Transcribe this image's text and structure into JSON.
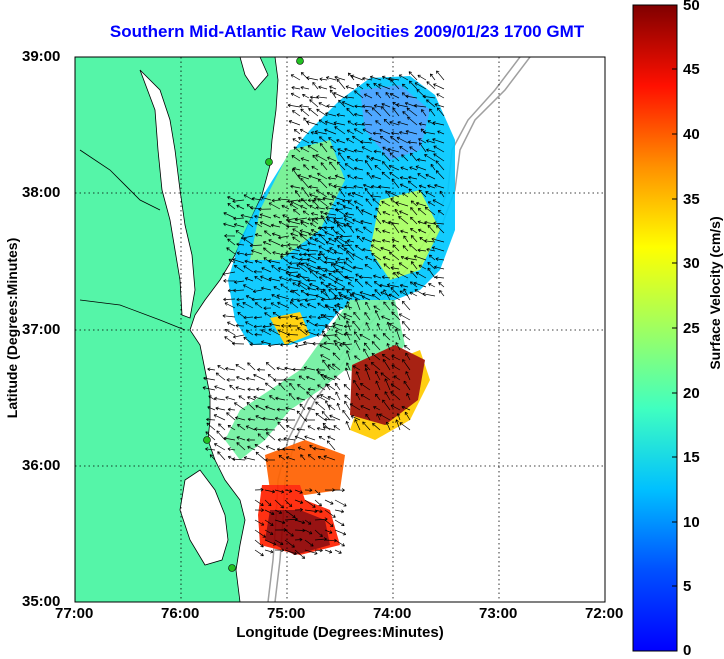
{
  "title": "Southern Mid-Atlantic Raw Velocities 2009/01/23 1700 GMT",
  "xlabel": "Longitude (Degrees:Minutes)",
  "ylabel": "Latitude (Degrees:Minutes)",
  "colorbar_label": "Surface Velocity (cm/s)",
  "x_ticks": [
    "77:00",
    "76:00",
    "75:00",
    "74:00",
    "73:00",
    "72:00"
  ],
  "y_ticks": [
    "39:00",
    "38:00",
    "37:00",
    "36:00",
    "35:00"
  ],
  "colorbar_ticks": [
    "50",
    "45",
    "40",
    "35",
    "30",
    "25",
    "20",
    "15",
    "10",
    "5",
    "0"
  ],
  "colors": {
    "land": "#55f5a8",
    "water": "#ffffff",
    "title": "#0000ff",
    "bathymetry": "#a0a0a0",
    "station": "#22c022"
  },
  "chart_data": {
    "type": "heatmap",
    "x_range": [
      -77,
      -72
    ],
    "y_range": [
      35,
      39
    ],
    "color_range": [
      0,
      50
    ],
    "grid": true
  }
}
